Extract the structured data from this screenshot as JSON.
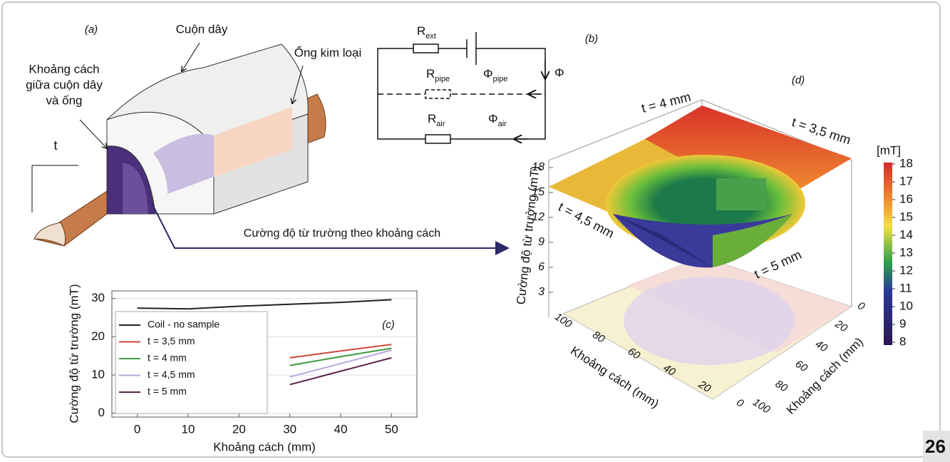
{
  "panel_a": {
    "label": "(a)",
    "coil": "Cuộn dây",
    "gap": [
      "Khoảng cách",
      "giữa cuộn dây",
      "và ống"
    ],
    "pipe": "Ống kim loại",
    "thickness": "t"
  },
  "panel_b": {
    "label": "(b)",
    "r_ext": {
      "main": "R",
      "sub": "ext"
    },
    "r_pipe": {
      "main": "R",
      "sub": "pipe"
    },
    "r_air": {
      "main": "R",
      "sub": "air"
    },
    "phi_pipe": {
      "main": "Φ",
      "sub": "pipe"
    },
    "phi": "Φ",
    "phi_air": {
      "main": "Φ",
      "sub": "air"
    }
  },
  "arrow_caption": "Cường độ từ trường theo khoảng cách",
  "chart_data": {
    "type": "line",
    "label": "(c)",
    "x_label": "Khoảng cách (mm)",
    "y_label": "Cường độ từ trường (mT)",
    "x": [
      0,
      10,
      20,
      30,
      40,
      50
    ],
    "series": [
      {
        "name": "Coil - no sample",
        "color": "#222222",
        "values": [
          27.5,
          27.3,
          28,
          28.5,
          29,
          29.7
        ]
      },
      {
        "name": "t = 3,5 mm",
        "color": "#d0483a",
        "values": [
          null,
          null,
          null,
          14.5,
          16.3,
          18
        ]
      },
      {
        "name": "t = 4 mm",
        "color": "#3d9a3d",
        "values": [
          null,
          null,
          null,
          12.5,
          14.8,
          17
        ]
      },
      {
        "name": "t = 4,5 mm",
        "color": "#b8a6dc",
        "values": [
          null,
          null,
          null,
          9.5,
          13,
          16.5
        ]
      },
      {
        "name": "t = 5 mm",
        "color": "#5a2448",
        "values": [
          null,
          null,
          null,
          7.5,
          11,
          14.5
        ]
      }
    ],
    "xlim": [
      -5,
      55
    ],
    "ylim": [
      -1,
      32
    ],
    "xticks": [
      0,
      10,
      20,
      30,
      40,
      50
    ],
    "yticks": [
      0,
      10,
      20,
      30
    ],
    "grid": true
  },
  "panel_d": {
    "label": "(d)",
    "z_label": "Cường độ từ trường (mT)",
    "zticks": [
      3,
      6,
      9,
      12,
      15,
      18
    ],
    "x_label": "Khoảng cách (mm)",
    "xticks": [
      100,
      80,
      60,
      40,
      20,
      0
    ],
    "y_label": "Khoảng cách (mm)",
    "yticks": [
      0,
      20,
      40,
      60,
      80,
      100
    ],
    "annotations": [
      "t = 4 mm",
      "t = 3,5 mm",
      "t = 4,5 mm",
      "t = 5 mm"
    ],
    "colorbar": {
      "label": "[mT]",
      "ticks": [
        18,
        17,
        16,
        15,
        14,
        13,
        12,
        11,
        10,
        9,
        8
      ]
    }
  },
  "page_number": "26"
}
